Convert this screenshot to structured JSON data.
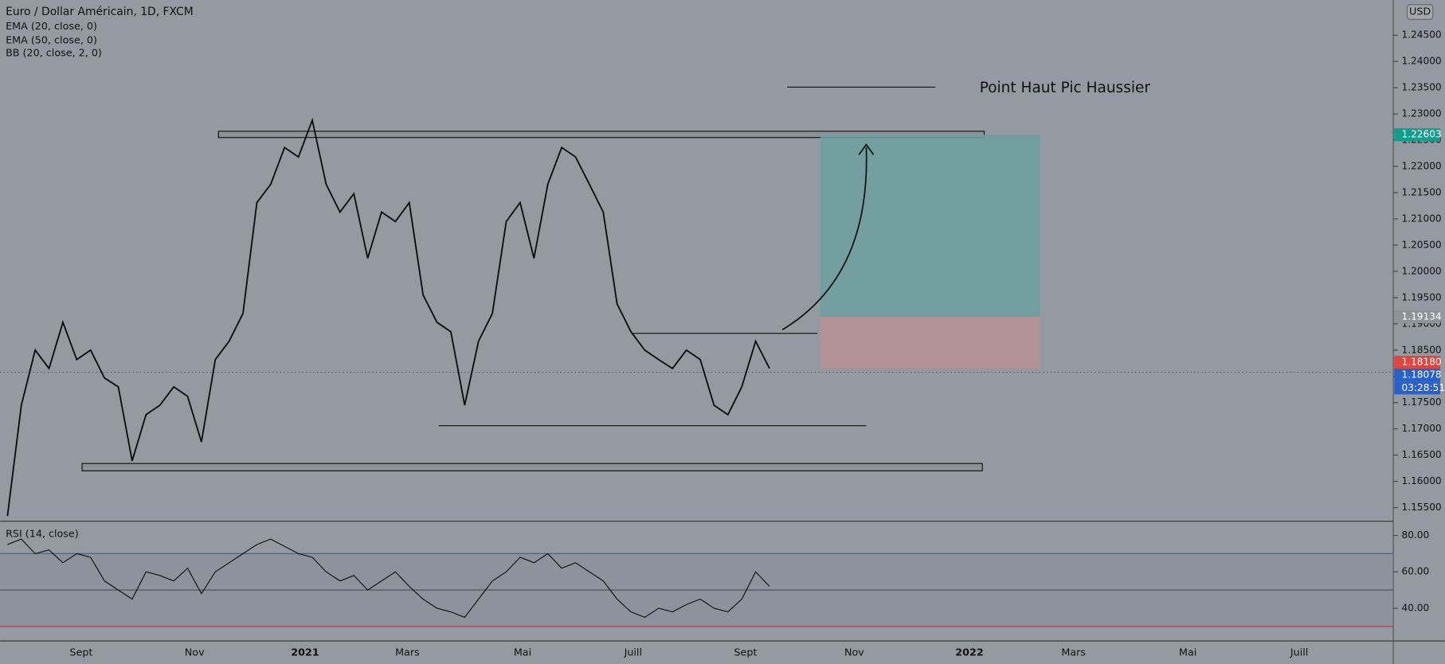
{
  "chart_data": {
    "type": "line",
    "title": "Euro / Dollar Américain, 1D, FXCM",
    "indicators": [
      "EMA (20, close, 0)",
      "EMA (50, close, 0)",
      "BB (20, close, 2, 0)"
    ],
    "currency": "USD",
    "annotation": "Point Haut Pic Haussier",
    "time_labels": [
      "Sept",
      "Nov",
      "2021",
      "Mars",
      "Mai",
      "Juill",
      "Sept",
      "Nov",
      "2022",
      "Mars",
      "Mai",
      "Juill"
    ],
    "ylim": [
      1.1524,
      1.2517
    ],
    "yticks": [
      {
        "value": 1.155,
        "label": "1.15500"
      },
      {
        "value": 1.16,
        "label": "1.16000"
      },
      {
        "value": 1.165,
        "label": "1.16500"
      },
      {
        "value": 1.17,
        "label": "1.17000"
      },
      {
        "value": 1.175,
        "label": "1.17500"
      },
      {
        "value": 1.18,
        "label": "1.18000"
      },
      {
        "value": 1.185,
        "label": "1.18500"
      },
      {
        "value": 1.19,
        "label": "1.19000"
      },
      {
        "value": 1.195,
        "label": "1.19500"
      },
      {
        "value": 1.2,
        "label": "1.20000"
      },
      {
        "value": 1.205,
        "label": "1.20500"
      },
      {
        "value": 1.21,
        "label": "1.21000"
      },
      {
        "value": 1.215,
        "label": "1.21500"
      },
      {
        "value": 1.22,
        "label": "1.22000"
      },
      {
        "value": 1.225,
        "label": "1.22500"
      },
      {
        "value": 1.23,
        "label": "1.23000"
      },
      {
        "value": 1.235,
        "label": "1.23500"
      },
      {
        "value": 1.24,
        "label": "1.24000"
      },
      {
        "value": 1.245,
        "label": "1.24500"
      }
    ],
    "color": "#0b0d12",
    "values": [
      1.1534,
      1.1745,
      1.185,
      1.1815,
      1.1903,
      1.1832,
      1.185,
      1.1797,
      1.178,
      1.1639,
      1.1727,
      1.1745,
      1.178,
      1.1762,
      1.1675,
      1.1832,
      1.1867,
      1.192,
      1.2131,
      1.2166,
      1.2236,
      1.2218,
      1.2288,
      1.2166,
      1.2113,
      1.2148,
      1.2025,
      1.2113,
      1.2095,
      1.2131,
      1.1955,
      1.1903,
      1.1885,
      1.1745,
      1.1867,
      1.192,
      1.2095,
      1.2131,
      1.2025,
      1.2166,
      1.2236,
      1.2218,
      1.2166,
      1.2113,
      1.1938,
      1.1885,
      1.185,
      1.1832,
      1.1815,
      1.185,
      1.1832,
      1.1745,
      1.1727,
      1.178,
      1.1867,
      1.1815
    ],
    "zones": [
      {
        "top": 1.2267,
        "bottom": 1.2255
      },
      {
        "top": 1.1634,
        "bottom": 1.162
      }
    ],
    "lines": [
      1.1706,
      1.1882,
      1.2351
    ],
    "price_tags": [
      1.22603,
      1.19134,
      {
        "value": 1.1818,
        "label": "1.18180"
      },
      1.18078
    ],
    "countdown": "03:28:51",
    "stop": 1.1815,
    "rsi": {
      "title": "RSI (14, close)",
      "ylim": [
        22,
        87.8
      ],
      "yticks": [
        {
          "value": 40,
          "label": "40.00"
        },
        {
          "value": 60,
          "label": "60.00"
        },
        {
          "value": 80,
          "label": "80.00"
        }
      ],
      "levels": [
        70,
        50,
        30
      ],
      "values": [
        75,
        78,
        70,
        72,
        65,
        70,
        68,
        55,
        50,
        45,
        60,
        58,
        55,
        62,
        48,
        60,
        65,
        70,
        75,
        78,
        74,
        70,
        68,
        60,
        55,
        58,
        50,
        55,
        60,
        52,
        45,
        40,
        38,
        35,
        45,
        55,
        60,
        68,
        65,
        70,
        62,
        65,
        60,
        55,
        45,
        38,
        35,
        40,
        38,
        42,
        45,
        40,
        38,
        45,
        60,
        52
      ]
    }
  }
}
